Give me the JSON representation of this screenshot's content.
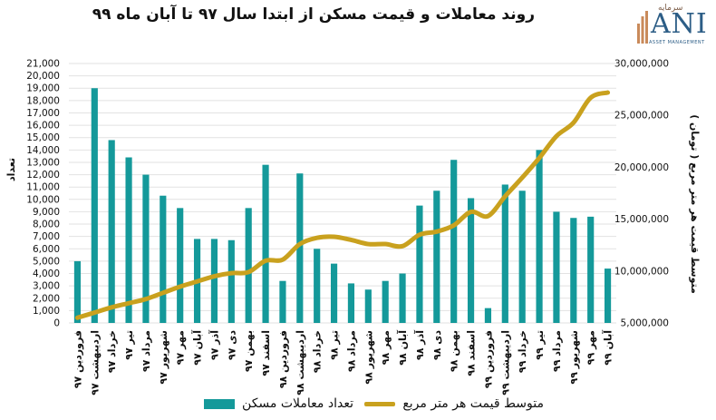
{
  "title": "روند معاملات و قیمت مسکن از ابتدا سال ۹۷ تا آبان ماه ۹۹",
  "logo": {
    "main": "ANI",
    "persian": "سرمایه",
    "sub": "ASSET MANAGEMENT"
  },
  "colors": {
    "bars": "#14999a",
    "line": "#c9a11e",
    "grid": "#e2e2e2"
  },
  "chart_data": {
    "type": "bar+line",
    "title": "روند معاملات و قیمت مسکن از ابتدا سال ۹۷ تا آبان ماه ۹۹",
    "ylabel_left": "تعداد",
    "ylabel_right": "متوسط قیمت هر متر مربع ( تومان )",
    "ylim_left": [
      0,
      21000
    ],
    "ylim_right": [
      5000000,
      30000000
    ],
    "y_ticks_left": [
      "0",
      "1,000",
      "2,000",
      "3,000",
      "4,000",
      "5,000",
      "6,000",
      "7,000",
      "8,000",
      "9,000",
      "10,000",
      "11,000",
      "12,000",
      "13,000",
      "14,000",
      "15,000",
      "16,000",
      "17,000",
      "18,000",
      "19,000",
      "20,000",
      "21,000"
    ],
    "y_ticks_right": [
      "5,000,000",
      "10,000,000",
      "15,000,000",
      "20,000,000",
      "25,000,000",
      "30,000,000"
    ],
    "grid": true,
    "legend_position": "bottom",
    "categories": [
      "فروردین ۹۷",
      "اردیبهشت ۹۷",
      "خرداد ۹۷",
      "تیر ۹۷",
      "مرداد ۹۷",
      "شهریور ۹۷",
      "مهر ۹۷",
      "آبان ۹۷",
      "آذر ۹۷",
      "دی ۹۷",
      "بهمن ۹۷",
      "اسفند ۹۷",
      "فروردین ۹۸",
      "اردیبهشت ۹۸",
      "خرداد ۹۸",
      "تیر ۹۸",
      "مرداد ۹۸",
      "شهریور ۹۸",
      "مهر ۹۸",
      "آبان ۹۸",
      "آذر ۹۸",
      "دی ۹۸",
      "بهمن ۹۸",
      "اسفند ۹۸",
      "فروردین ۹۹",
      "اردیبهشت ۹۹",
      "خرداد ۹۹",
      "تیر ۹۹",
      "مرداد ۹۹",
      "شهریور ۹۹",
      "مهر ۹۹",
      "آبان ۹۹"
    ],
    "series": [
      {
        "name": "تعداد معاملات مسکن",
        "type": "bar",
        "axis": "left",
        "values": [
          5000,
          19000,
          14800,
          13400,
          12000,
          10300,
          9300,
          6800,
          6800,
          6700,
          9300,
          12800,
          3400,
          12100,
          6000,
          4800,
          3200,
          2700,
          3400,
          4000,
          9500,
          10700,
          13200,
          10100,
          1200,
          11200,
          10700,
          14000,
          9000,
          8500,
          8600,
          4400
        ]
      },
      {
        "name": "متوسط قیمت هر متر مربع",
        "type": "line",
        "axis": "right",
        "values": [
          5500000,
          6000000,
          6500000,
          6900000,
          7300000,
          7900000,
          8500000,
          9000000,
          9500000,
          9800000,
          9900000,
          11000000,
          11100000,
          12600000,
          13200000,
          13300000,
          13000000,
          12600000,
          12600000,
          12400000,
          13500000,
          13800000,
          14400000,
          15700000,
          15300000,
          17200000,
          19000000,
          20900000,
          23000000,
          24300000,
          26700000,
          27200000
        ]
      }
    ]
  }
}
